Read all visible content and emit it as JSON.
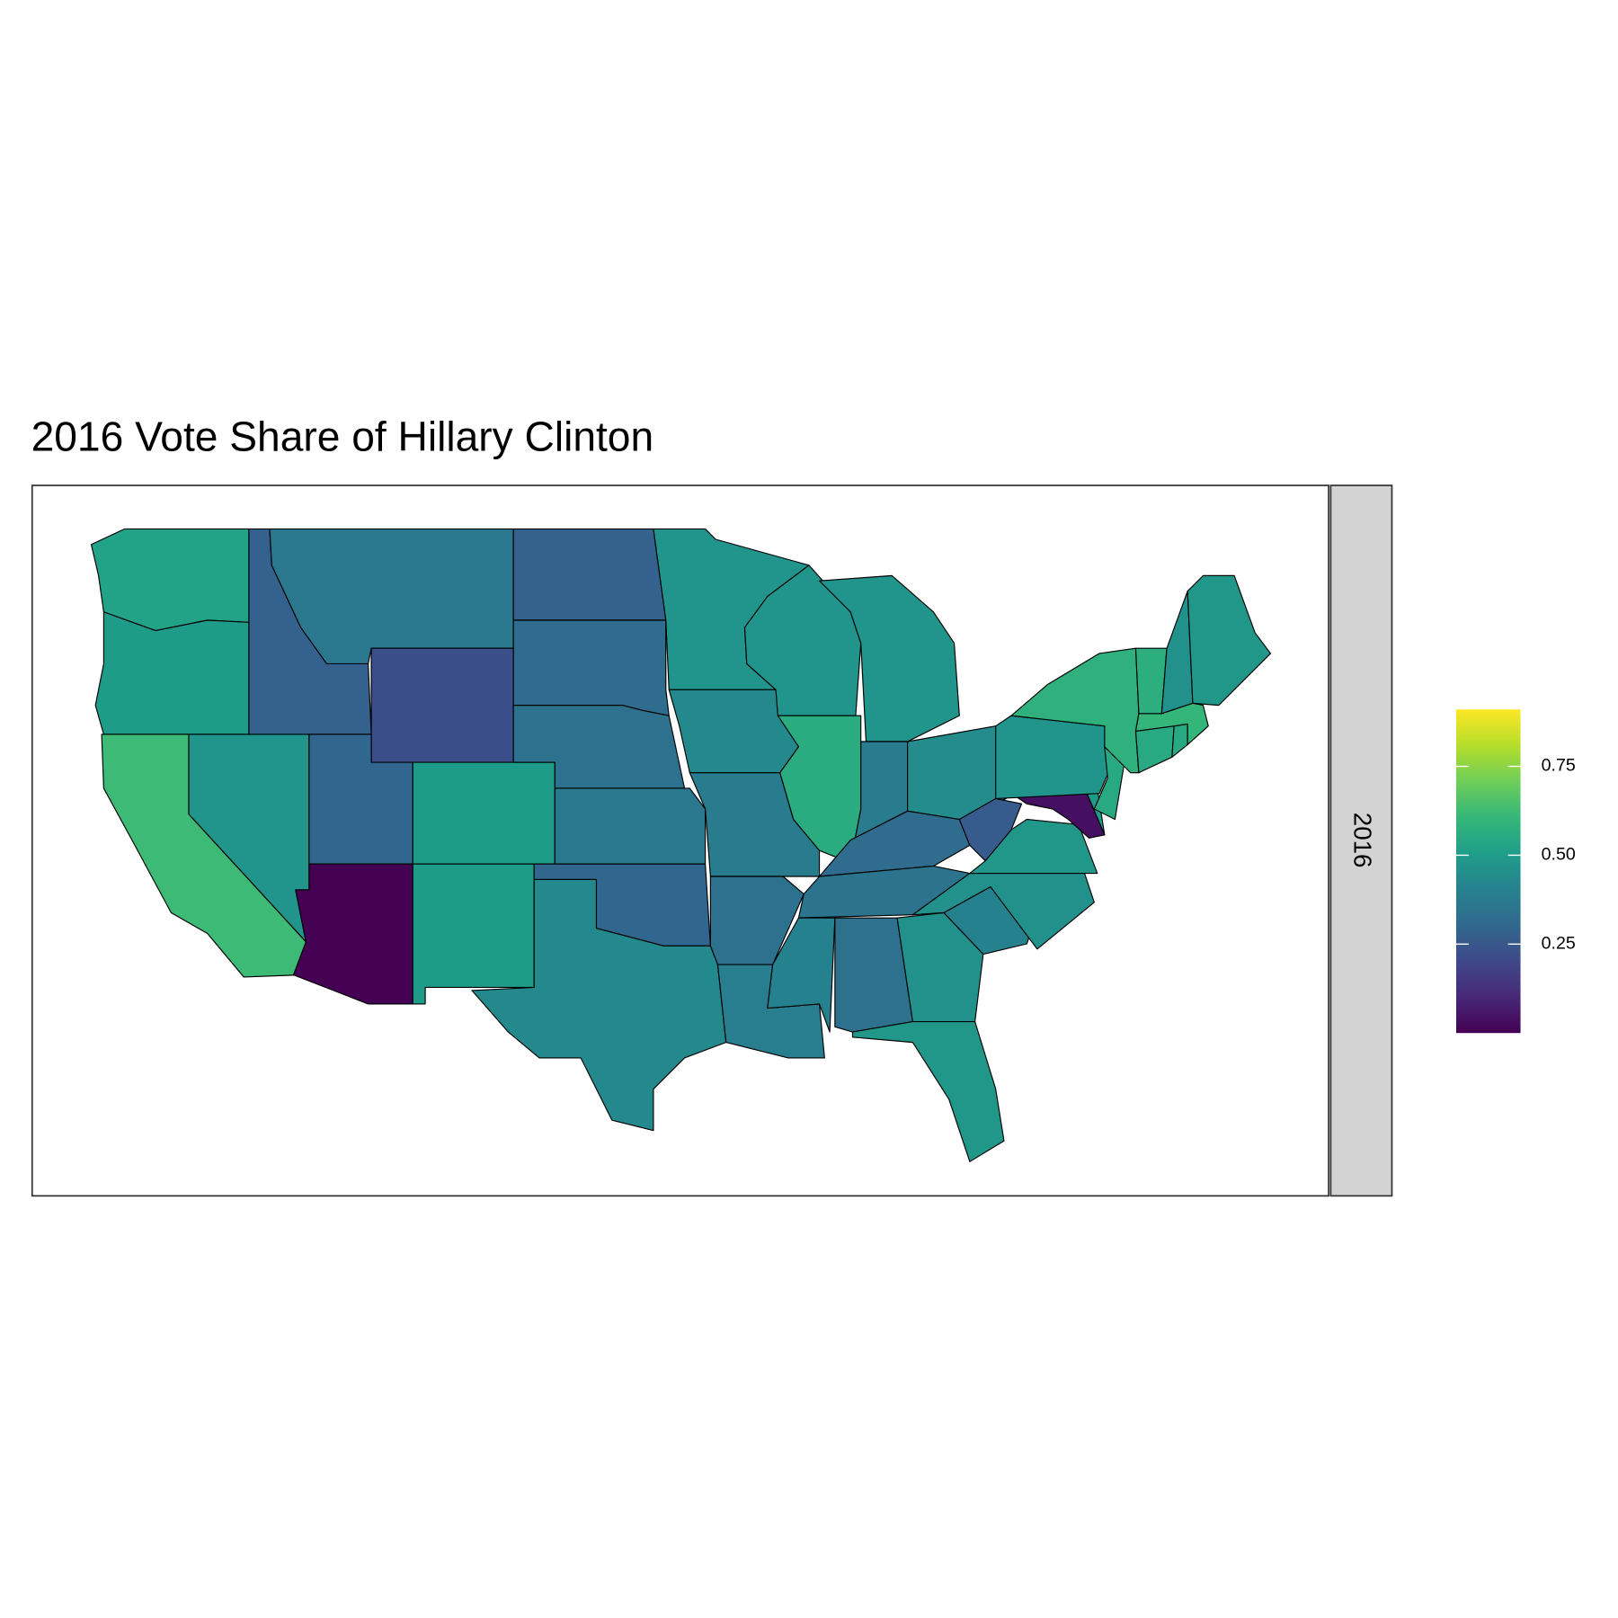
{
  "chart_data": {
    "type": "choropleth",
    "title": "2016 Vote Share of Hillary Clinton",
    "facet": "2016",
    "colormap": "viridis",
    "colorlim": [
      0.0,
      0.91
    ],
    "colorticks": [
      0.25,
      {
        "value": 0.5,
        "label": "0.50"
      },
      0.75
    ],
    "values": [
      0.52,
      0.5,
      0.62,
      0.47,
      0.28,
      0.36,
      0.22,
      0.3,
      0.0,
      0.5,
      0.5,
      0.28,
      0.32,
      0.34,
      0.36,
      0.3,
      0.43,
      0.47,
      0.43,
      0.38,
      0.34,
      0.39,
      0.47,
      0.56,
      0.47,
      0.38,
      0.44,
      0.32,
      0.35,
      0.4,
      0.34,
      0.46,
      0.48,
      0.4,
      0.46,
      0.48,
      0.26,
      0.04,
      0.5,
      0.47,
      0.55,
      0.58,
      0.55,
      0.55,
      0.6,
      0.57,
      0.46,
      0.48
    ]
  }
}
